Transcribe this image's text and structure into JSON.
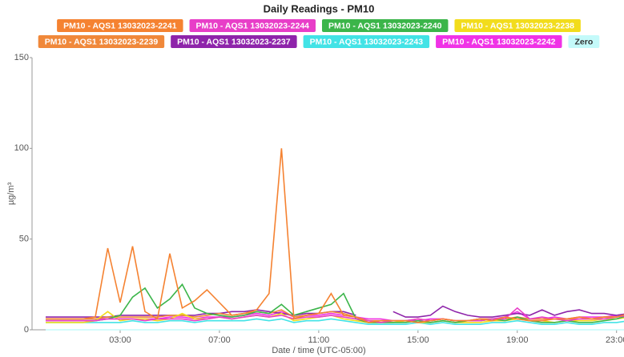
{
  "chart_data": {
    "type": "line",
    "title": "Daily Readings - PM10",
    "x_label": "Date / time (UTC-05:00)",
    "y_label": "µg/m³",
    "x": [
      0,
      0.5,
      1,
      1.5,
      2,
      2.5,
      3,
      3.5,
      4,
      4.5,
      5,
      5.5,
      6,
      6.5,
      7,
      7.5,
      8,
      8.5,
      9,
      9.5,
      10,
      10.5,
      11,
      11.5,
      12,
      12.5,
      13,
      13.5,
      14,
      14.5,
      15,
      15.5,
      16,
      16.5,
      17,
      17.5,
      18,
      18.5,
      19,
      19.5,
      20,
      20.5,
      21,
      21.5,
      22,
      22.5,
      23,
      23.5
    ],
    "xlim": [
      -0.55,
      23.3
    ],
    "xticks": [
      {
        "value": 3,
        "label": "03:00"
      },
      {
        "value": 7,
        "label": "07:00"
      },
      {
        "value": 11,
        "label": "11:00"
      },
      {
        "value": 15,
        "label": "15:00"
      },
      {
        "value": 19,
        "label": "19:00"
      },
      {
        "value": 23,
        "label": "23:00"
      }
    ],
    "ylim": [
      0,
      150
    ],
    "yticks": [
      0,
      50,
      100,
      150
    ],
    "grid": false,
    "series": [
      {
        "name": "PM10 - AQS1 13032023-2241",
        "color": "#f58231",
        "values": [
          6,
          6,
          6,
          6,
          7,
          45,
          15,
          46,
          10,
          6,
          42,
          12,
          16,
          22,
          15,
          8,
          9,
          11,
          20,
          100,
          6,
          8,
          9,
          20,
          8,
          7,
          4,
          5,
          5,
          5,
          4,
          5,
          6,
          5,
          5,
          6,
          5,
          7,
          6,
          5,
          5,
          6,
          6,
          7,
          6,
          7,
          7,
          9
        ]
      },
      {
        "name": "PM10 - AQS1 13032023-2244",
        "color": "#e83ec8",
        "values": [
          5,
          5,
          5,
          5,
          5,
          6,
          6,
          6,
          5,
          6,
          6,
          6,
          5,
          6,
          7,
          6,
          7,
          8,
          7,
          8,
          6,
          7,
          7,
          8,
          7,
          6,
          5,
          4,
          5,
          5,
          6,
          5,
          6,
          5,
          5,
          5,
          6,
          6,
          12,
          6,
          7,
          6,
          5,
          6,
          6,
          6,
          7,
          8
        ]
      },
      {
        "name": "PM10 - AQS1 13032023-2240",
        "color": "#3bb54a",
        "values": [
          5,
          5,
          5,
          5,
          5,
          6,
          8,
          18,
          23,
          12,
          17,
          25,
          12,
          9,
          8,
          7,
          8,
          10,
          9,
          14,
          8,
          10,
          12,
          14,
          20,
          6,
          4,
          4,
          4,
          4,
          5,
          4,
          5,
          4,
          5,
          5,
          6,
          5,
          7,
          5,
          4,
          4,
          5,
          4,
          4,
          5,
          6,
          8
        ]
      },
      {
        "name": "PM10 - AQS1 13032023-2238",
        "color": "#f2dc1c",
        "values": [
          4,
          4,
          4,
          4,
          5,
          10,
          5,
          6,
          6,
          5,
          6,
          9,
          6,
          6,
          7,
          6,
          7,
          8,
          7,
          9,
          5,
          6,
          7,
          8,
          6,
          5,
          4,
          4,
          4,
          5,
          4,
          4,
          5,
          4,
          4,
          4,
          5,
          5,
          6,
          5,
          5,
          4,
          5,
          5,
          5,
          6,
          6,
          7
        ]
      },
      {
        "name": "PM10 - AQS1 13032023-2239",
        "color": "#f0883a",
        "values": [
          6,
          6,
          6,
          6,
          6,
          7,
          7,
          7,
          7,
          7,
          8,
          8,
          7,
          8,
          9,
          8,
          9,
          10,
          9,
          11,
          7,
          8,
          9,
          10,
          9,
          7,
          5,
          5,
          5,
          5,
          6,
          5,
          6,
          5,
          5,
          6,
          6,
          6,
          7,
          6,
          6,
          6,
          6,
          6,
          6,
          7,
          7,
          9
        ]
      },
      {
        "name": "PM10 - AQS1 13032023-2237",
        "color": "#8e24aa",
        "values": [
          7,
          7,
          7,
          7,
          7,
          7,
          8,
          8,
          8,
          8,
          8,
          8,
          8,
          9,
          9,
          10,
          10,
          11,
          10,
          9,
          8,
          9,
          9,
          10,
          10,
          8,
          null,
          null,
          10,
          7,
          7,
          8,
          13,
          10,
          8,
          7,
          7,
          8,
          9,
          8,
          11,
          8,
          10,
          11,
          9,
          9,
          8,
          9
        ]
      },
      {
        "name": "PM10 - AQS1 13032023-2243",
        "color": "#42e3e6",
        "values": [
          4,
          4,
          4,
          4,
          4,
          4,
          4,
          5,
          4,
          4,
          5,
          5,
          4,
          5,
          5,
          5,
          5,
          6,
          5,
          6,
          4,
          5,
          5,
          6,
          5,
          4,
          3,
          3,
          3,
          3,
          4,
          3,
          4,
          3,
          3,
          3,
          4,
          4,
          5,
          4,
          3,
          3,
          4,
          3,
          3,
          4,
          4,
          5
        ]
      },
      {
        "name": "PM10 - AQS1 13032023-2242",
        "color": "#f032e6",
        "values": [
          6,
          6,
          6,
          6,
          6,
          6,
          6,
          6,
          6,
          6,
          7,
          7,
          6,
          7,
          7,
          7,
          8,
          9,
          8,
          10,
          7,
          8,
          8,
          9,
          8,
          7,
          6,
          6,
          5,
          5,
          5,
          6,
          6,
          5,
          5,
          6,
          6,
          7,
          10,
          6,
          6,
          7,
          6,
          7,
          7,
          7,
          8,
          9
        ]
      },
      {
        "name": "Zero",
        "color": "#c4fafa",
        "values": [
          0,
          0,
          0,
          0,
          0,
          0,
          0,
          0,
          0,
          0,
          0,
          0,
          0,
          0,
          0,
          0,
          0,
          0,
          0,
          0,
          0,
          0,
          0,
          0,
          0,
          0,
          0,
          0,
          0,
          0,
          0,
          0,
          0,
          0,
          0,
          0,
          0,
          0,
          0,
          0,
          0,
          0,
          0,
          0,
          0,
          0,
          0,
          0
        ]
      }
    ]
  }
}
